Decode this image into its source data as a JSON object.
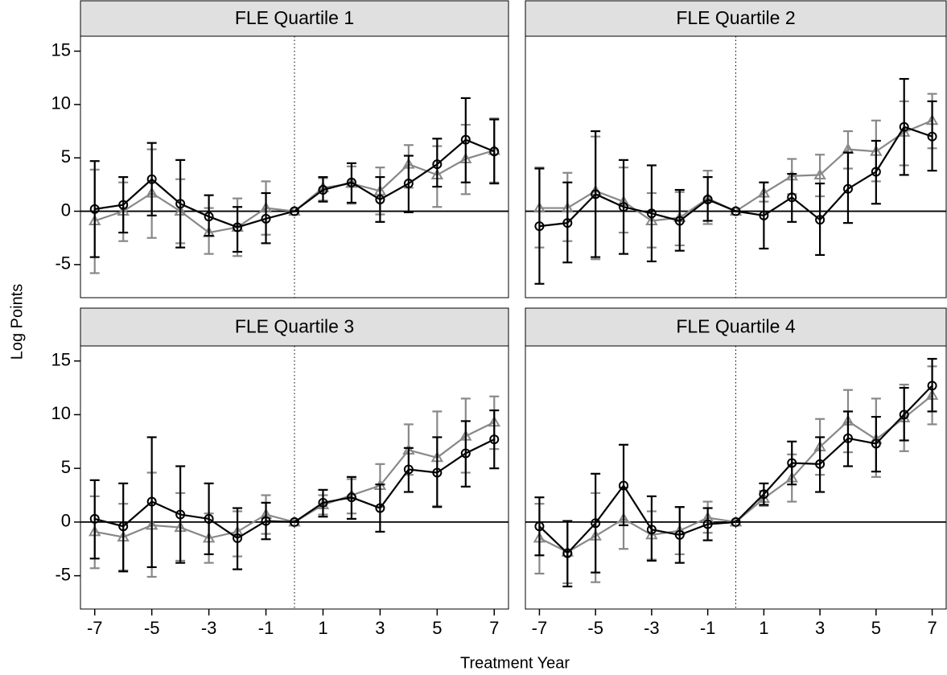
{
  "axis_labels": {
    "x": "Treatment Year",
    "y": "Log Points"
  },
  "chart_data": [
    {
      "type": "line",
      "title": "FLE Quartile 1",
      "x": [
        -7,
        -6,
        -5,
        -4,
        -3,
        -2,
        -1,
        0,
        1,
        2,
        3,
        4,
        5,
        6,
        7
      ],
      "xlim": [
        -7.5,
        7.5
      ],
      "ylim": [
        -8.1,
        16.4
      ],
      "yticks": [
        -5,
        0,
        5,
        10,
        15
      ],
      "hline": 0,
      "vline": 0,
      "series": [
        {
          "color": "#000000",
          "marker": "circle",
          "values": [
            0.2,
            0.6,
            3.0,
            0.7,
            -0.5,
            -1.5,
            -0.7,
            0,
            2.0,
            2.7,
            1.1,
            2.6,
            4.4,
            6.7,
            5.6
          ],
          "lower": [
            -4.3,
            -2.0,
            -0.4,
            -3.4,
            -2.3,
            -3.8,
            -3.0,
            0,
            0.9,
            0.8,
            -1.0,
            -0.1,
            2.3,
            2.7,
            2.6
          ],
          "upper": [
            4.7,
            3.2,
            6.4,
            4.8,
            1.5,
            0.4,
            1.7,
            0,
            3.2,
            4.5,
            3.2,
            5.2,
            6.8,
            10.6,
            8.6
          ]
        },
        {
          "color": "#888888",
          "marker": "triangle",
          "values": [
            -0.9,
            0.0,
            1.7,
            0.0,
            -2.0,
            -1.5,
            0.3,
            0,
            2.2,
            2.6,
            1.9,
            4.4,
            3.4,
            4.9,
            5.7
          ],
          "lower": [
            -5.8,
            -2.8,
            -2.5,
            -3.0,
            -4.0,
            -4.2,
            -2.2,
            0,
            1.0,
            0.7,
            -0.3,
            2.2,
            0.4,
            1.6,
            2.7
          ],
          "upper": [
            3.9,
            2.7,
            5.8,
            3.0,
            0.3,
            1.2,
            2.8,
            0,
            3.1,
            4.2,
            4.1,
            6.2,
            6.1,
            8.1,
            8.7
          ]
        }
      ]
    },
    {
      "type": "line",
      "title": "FLE Quartile 2",
      "x": [
        -7,
        -6,
        -5,
        -4,
        -3,
        -2,
        -1,
        0,
        1,
        2,
        3,
        4,
        5,
        6,
        7
      ],
      "xlim": [
        -7.5,
        7.5
      ],
      "ylim": [
        -8.1,
        16.4
      ],
      "hline": 0,
      "vline": 0,
      "series": [
        {
          "color": "#000000",
          "marker": "circle",
          "values": [
            -1.4,
            -1.1,
            1.6,
            0.4,
            -0.2,
            -0.9,
            1.1,
            0,
            -0.4,
            1.3,
            -0.8,
            2.1,
            3.7,
            7.9,
            7.0
          ],
          "lower": [
            -6.8,
            -4.8,
            -4.3,
            -4.0,
            -4.7,
            -3.7,
            -0.9,
            0,
            -3.5,
            -1.0,
            -4.1,
            -1.1,
            0.7,
            3.4,
            3.8
          ],
          "upper": [
            4.0,
            2.7,
            7.5,
            4.8,
            4.3,
            2.0,
            3.2,
            0,
            2.7,
            3.5,
            2.6,
            5.5,
            6.6,
            12.4,
            10.3
          ]
        },
        {
          "color": "#888888",
          "marker": "triangle",
          "values": [
            0.3,
            0.3,
            1.9,
            0.9,
            -0.9,
            -0.6,
            1.2,
            0,
            1.7,
            3.3,
            3.4,
            5.8,
            5.6,
            7.4,
            8.5
          ],
          "lower": [
            -3.4,
            -2.8,
            -4.5,
            -2.0,
            -3.4,
            -3.2,
            -1.2,
            0,
            0.9,
            1.6,
            1.4,
            4.0,
            2.8,
            4.3,
            5.9
          ],
          "upper": [
            4.1,
            3.6,
            7.0,
            4.1,
            1.7,
            1.8,
            3.8,
            0,
            2.7,
            4.9,
            5.3,
            7.5,
            8.5,
            10.3,
            11.0
          ]
        }
      ]
    },
    {
      "type": "line",
      "title": "FLE Quartile 3",
      "x": [
        -7,
        -6,
        -5,
        -4,
        -3,
        -2,
        -1,
        0,
        1,
        2,
        3,
        4,
        5,
        6,
        7
      ],
      "xlim": [
        -7.5,
        7.5
      ],
      "ylim": [
        -8.1,
        16.4
      ],
      "yticks": [
        -5,
        0,
        5,
        10,
        15
      ],
      "xticks": [
        -7,
        -5,
        -3,
        -1,
        1,
        3,
        5,
        7
      ],
      "hline": 0,
      "vline": 0,
      "series": [
        {
          "color": "#000000",
          "marker": "circle",
          "values": [
            0.3,
            -0.4,
            1.9,
            0.7,
            0.3,
            -1.5,
            0.1,
            0,
            1.8,
            2.3,
            1.3,
            4.9,
            4.6,
            6.4,
            7.7
          ],
          "lower": [
            -3.4,
            -4.6,
            -4.2,
            -3.8,
            -3.0,
            -4.4,
            -1.6,
            0,
            0.5,
            0.3,
            -0.9,
            2.8,
            1.4,
            3.3,
            5.0
          ],
          "upper": [
            3.9,
            3.6,
            7.9,
            5.2,
            3.6,
            1.3,
            1.8,
            0,
            3.0,
            4.2,
            3.5,
            6.9,
            7.9,
            9.4,
            10.4
          ]
        },
        {
          "color": "#888888",
          "marker": "triangle",
          "values": [
            -0.9,
            -1.4,
            -0.3,
            -0.5,
            -1.5,
            -0.9,
            0.7,
            0,
            1.6,
            2.5,
            3.4,
            6.7,
            6.0,
            8.0,
            9.3
          ],
          "lower": [
            -4.3,
            -4.5,
            -5.1,
            -3.6,
            -3.8,
            -3.2,
            -1.1,
            0,
            0.7,
            0.8,
            1.4,
            4.4,
            1.5,
            4.6,
            6.8
          ],
          "upper": [
            2.4,
            1.7,
            4.6,
            2.7,
            0.8,
            1.0,
            2.5,
            0,
            2.5,
            4.0,
            5.4,
            9.1,
            10.3,
            11.5,
            11.7
          ]
        }
      ]
    },
    {
      "type": "line",
      "title": "FLE Quartile 4",
      "x": [
        -7,
        -6,
        -5,
        -4,
        -3,
        -2,
        -1,
        0,
        1,
        2,
        3,
        4,
        5,
        6,
        7
      ],
      "xlim": [
        -7.5,
        7.5
      ],
      "ylim": [
        -8.1,
        16.4
      ],
      "xticks": [
        -7,
        -5,
        -3,
        -1,
        1,
        3,
        5,
        7
      ],
      "hline": 0,
      "vline": 0,
      "series": [
        {
          "color": "#000000",
          "marker": "circle",
          "values": [
            -0.4,
            -2.9,
            -0.1,
            3.4,
            -0.7,
            -1.2,
            -0.2,
            0,
            2.6,
            5.5,
            5.4,
            7.8,
            7.3,
            10.0,
            12.7
          ],
          "lower": [
            -3.1,
            -6.0,
            -4.7,
            -0.3,
            -3.6,
            -3.8,
            -1.7,
            0,
            1.6,
            3.5,
            2.8,
            5.2,
            4.7,
            7.6,
            10.3
          ],
          "upper": [
            2.3,
            0.1,
            4.5,
            7.2,
            2.4,
            1.4,
            1.3,
            0,
            3.6,
            7.5,
            7.9,
            10.3,
            9.8,
            12.5,
            15.2
          ]
        },
        {
          "color": "#888888",
          "marker": "triangle",
          "values": [
            -1.5,
            -2.8,
            -1.3,
            0.3,
            -1.2,
            -0.8,
            0.4,
            0,
            2.2,
            4.1,
            7.0,
            9.4,
            7.7,
            9.7,
            11.8
          ],
          "lower": [
            -4.8,
            -5.7,
            -5.6,
            -2.5,
            -3.5,
            -3.0,
            -1.0,
            0,
            1.5,
            1.9,
            4.4,
            6.5,
            4.2,
            6.6,
            9.1
          ],
          "upper": [
            1.7,
            0.1,
            2.7,
            3.2,
            1.0,
            1.4,
            1.9,
            0,
            2.9,
            6.3,
            9.6,
            12.3,
            11.5,
            12.8,
            14.5
          ]
        }
      ]
    }
  ]
}
